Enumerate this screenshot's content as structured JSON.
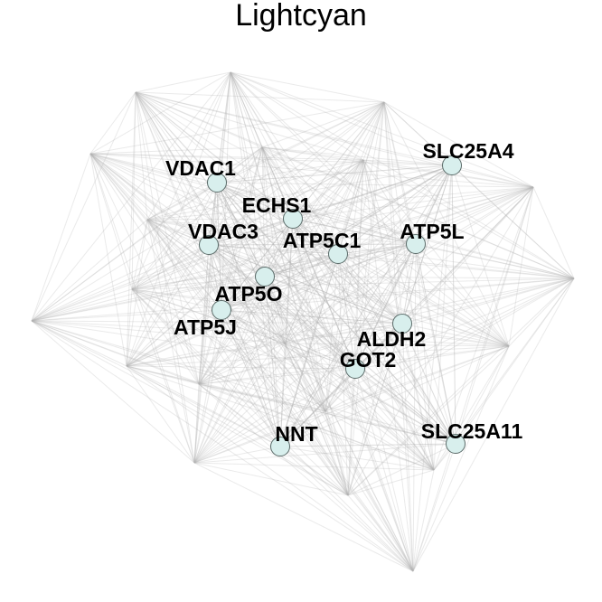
{
  "title": "Lightcyan",
  "colors": {
    "node_fill": "#d8efed",
    "node_stroke": "#5a6a68",
    "edge": "#b4b4b4"
  },
  "hub_genes": [
    {
      "id": "VDAC1",
      "label": "VDAC1"
    },
    {
      "id": "ECHS1",
      "label": "ECHS1"
    },
    {
      "id": "VDAC3",
      "label": "VDAC3"
    },
    {
      "id": "ATP5C1",
      "label": "ATP5C1"
    },
    {
      "id": "ATP5L",
      "label": "ATP5L"
    },
    {
      "id": "SLC25A4",
      "label": "SLC25A4"
    },
    {
      "id": "ATP5O",
      "label": "ATP5O"
    },
    {
      "id": "ATP5J",
      "label": "ATP5J"
    },
    {
      "id": "ALDH2",
      "label": "ALDH2"
    },
    {
      "id": "GOT2",
      "label": "GOT2"
    },
    {
      "id": "NNT",
      "label": "NNT"
    },
    {
      "id": "SLC25A11",
      "label": "SLC25A11"
    }
  ]
}
